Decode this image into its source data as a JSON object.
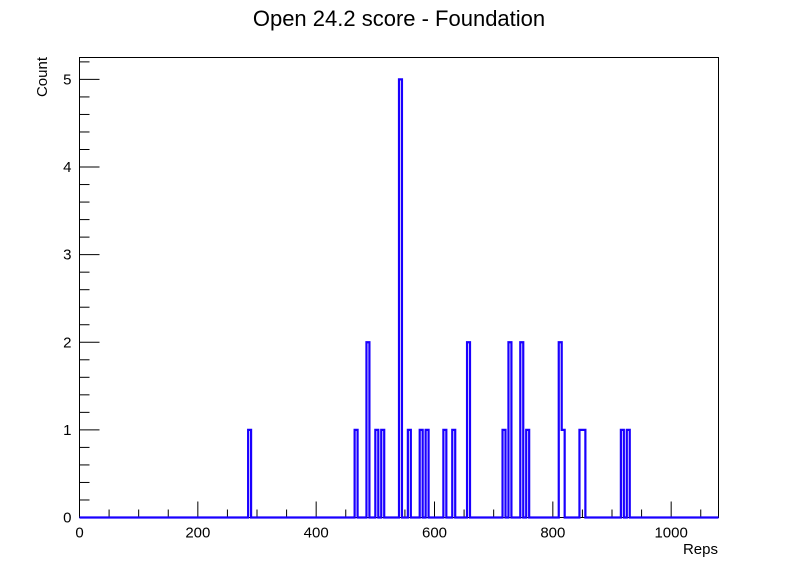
{
  "chart_data": {
    "type": "bar",
    "histogram_style": "step",
    "title": "Open 24.2 score - Foundation",
    "xlabel": "Reps",
    "ylabel": "Count",
    "xlim": [
      0,
      1080
    ],
    "ylim": [
      0,
      5.25
    ],
    "bin_width": 5,
    "x_ticks": [
      0,
      200,
      400,
      600,
      800,
      1000
    ],
    "y_ticks": [
      0,
      1,
      2,
      3,
      4,
      5
    ],
    "grid": false,
    "legend": "none",
    "line_color": "#1a00ff",
    "bins": [
      {
        "x": 285,
        "count": 1
      },
      {
        "x": 465,
        "count": 1
      },
      {
        "x": 485,
        "count": 2
      },
      {
        "x": 500,
        "count": 1
      },
      {
        "x": 510,
        "count": 1
      },
      {
        "x": 540,
        "count": 5
      },
      {
        "x": 555,
        "count": 1
      },
      {
        "x": 575,
        "count": 1
      },
      {
        "x": 585,
        "count": 1
      },
      {
        "x": 615,
        "count": 1
      },
      {
        "x": 630,
        "count": 1
      },
      {
        "x": 655,
        "count": 2
      },
      {
        "x": 715,
        "count": 1
      },
      {
        "x": 725,
        "count": 2
      },
      {
        "x": 745,
        "count": 2
      },
      {
        "x": 755,
        "count": 1
      },
      {
        "x": 810,
        "count": 2
      },
      {
        "x": 815,
        "count": 1
      },
      {
        "x": 845,
        "count": 1
      },
      {
        "x": 850,
        "count": 1
      },
      {
        "x": 915,
        "count": 1
      },
      {
        "x": 925,
        "count": 1
      }
    ]
  }
}
